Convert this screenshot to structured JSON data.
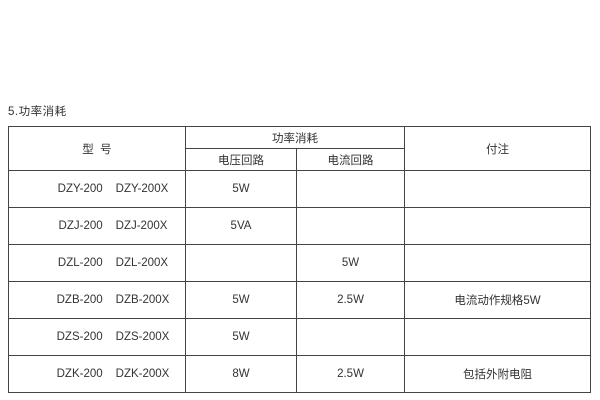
{
  "page": {
    "section_title": "5.功率消耗"
  },
  "table": {
    "headers": {
      "model": "型  号",
      "power_consumption": "功率消耗",
      "voltage_circuit": "电压回路",
      "current_circuit": "电流回路",
      "note": "付注"
    },
    "rows": [
      {
        "model_a": "DZY-200",
        "model_b": "DZY-200X",
        "voltage": "5W",
        "current": "",
        "note": ""
      },
      {
        "model_a": "DZJ-200",
        "model_b": "DZJ-200X",
        "voltage": "5VA",
        "current": "",
        "note": ""
      },
      {
        "model_a": "DZL-200",
        "model_b": "DZL-200X",
        "voltage": "",
        "current": "5W",
        "note": ""
      },
      {
        "model_a": "DZB-200",
        "model_b": "DZB-200X",
        "voltage": "5W",
        "current": "2.5W",
        "note": "电流动作规格5W"
      },
      {
        "model_a": "DZS-200",
        "model_b": "DZS-200X",
        "voltage": "5W",
        "current": "",
        "note": ""
      },
      {
        "model_a": "DZK-200",
        "model_b": "DZK-200X",
        "voltage": "8W",
        "current": "2.5W",
        "note": "包括外附电阻"
      }
    ],
    "colors": {
      "border": "#444444",
      "text": "#333333",
      "background": "#ffffff"
    }
  }
}
